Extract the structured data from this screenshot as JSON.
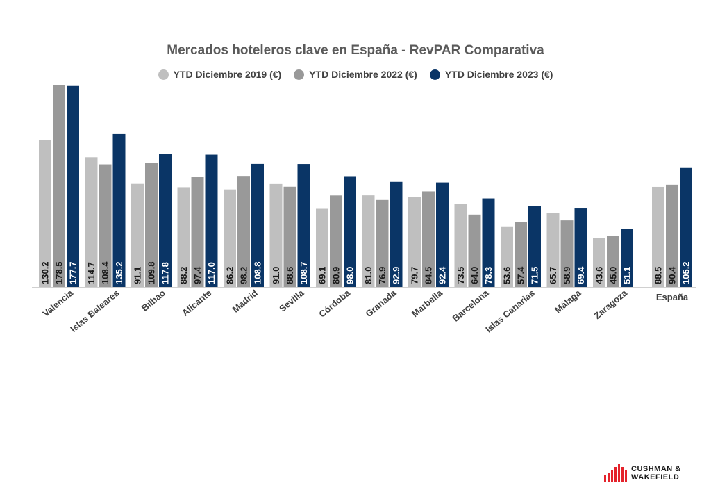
{
  "title": "Mercados hoteleros clave en España - RevPAR Comparativa",
  "legend": [
    {
      "label": "YTD Diciembre 2019 (€)",
      "color": "#bfbfbf"
    },
    {
      "label": "YTD Diciembre 2022 (€)",
      "color": "#999999"
    },
    {
      "label": "YTD Diciembre 2023 (€)",
      "color": "#0a3566"
    }
  ],
  "logo": {
    "line1": "CUSHMAN &",
    "line2": "WAKEFIELD"
  },
  "chart_data": {
    "type": "bar",
    "title": "Mercados hoteleros clave en España - RevPAR Comparativa",
    "categories": [
      "Valencia",
      "Islas Baleares",
      "Bilbao",
      "Alicante",
      "Madrid",
      "Sevilla",
      "Córdoba",
      "Granada",
      "Marbella",
      "Barcelona",
      "Islas Canarias",
      "Málaga",
      "Zaragoza",
      "España"
    ],
    "series": [
      {
        "name": "YTD Diciembre 2019 (€)",
        "color": "#bfbfbf",
        "values": [
          130.2,
          114.7,
          91.1,
          88.2,
          86.2,
          91.0,
          69.1,
          81.0,
          79.7,
          73.5,
          53.6,
          65.7,
          43.6,
          88.5
        ]
      },
      {
        "name": "YTD Diciembre 2022 (€)",
        "color": "#999999",
        "values": [
          178.5,
          108.4,
          109.8,
          97.4,
          98.2,
          88.6,
          80.9,
          76.9,
          84.5,
          64.0,
          57.4,
          58.9,
          45.0,
          90.4
        ]
      },
      {
        "name": "YTD Diciembre 2023 (€)",
        "color": "#0a3566",
        "values": [
          177.7,
          135.2,
          117.8,
          117.0,
          108.8,
          108.7,
          98.0,
          92.9,
          92.4,
          78.3,
          71.5,
          69.4,
          51.1,
          105.2
        ]
      }
    ],
    "ylim": [
      0,
      180
    ],
    "grid": false,
    "legend_position": "top"
  }
}
